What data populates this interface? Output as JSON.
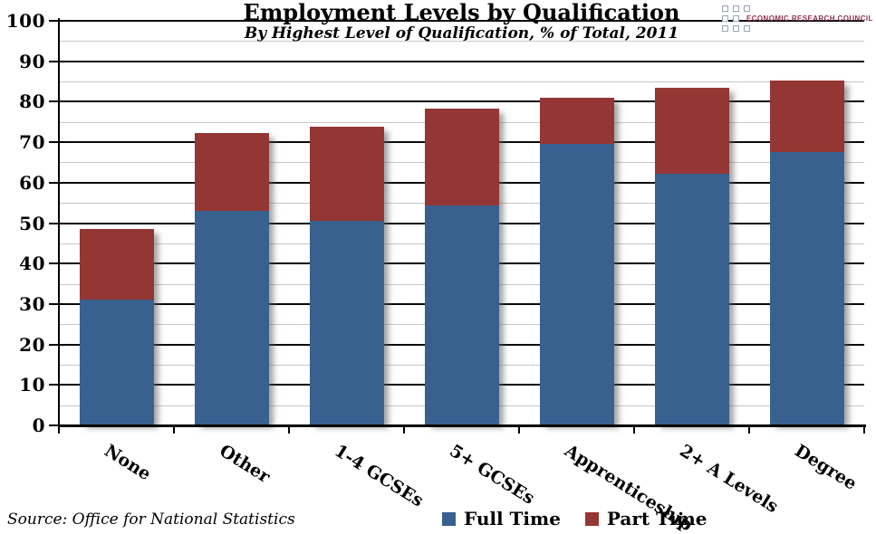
{
  "logo": {
    "text": "ECONOMIC RESEARCH COUNCIL",
    "text_color": "#8e3153",
    "square_border_color": "#9aa3b3"
  },
  "chart_data": {
    "type": "bar",
    "stacked": true,
    "title": "Employment Levels by Qualification",
    "subtitle": "By Highest Level of Qualification, % of Total, 2011",
    "source_note": "Source: Office for National Statistics",
    "categories": [
      "None",
      "Other",
      "1-4 GCSEs",
      "5+ GCSEs",
      "Apprenticeship",
      "2+ A Levels",
      "Degree"
    ],
    "series": [
      {
        "name": "Full Time",
        "color": "#38618F",
        "values": [
          31.0,
          53.0,
          50.5,
          54.3,
          69.5,
          62.2,
          67.6
        ]
      },
      {
        "name": "Part Time",
        "color": "#943634",
        "values": [
          17.5,
          19.3,
          23.3,
          24.1,
          11.4,
          21.3,
          17.7
        ]
      }
    ],
    "ylim": [
      0,
      100
    ],
    "y_major_step": 10,
    "y_minor_step": 5,
    "y_tick_labels": [
      "0",
      "10",
      "20",
      "30",
      "40",
      "50",
      "60",
      "70",
      "80",
      "90",
      "100"
    ],
    "grid": true,
    "legend_position": "bottom-center",
    "colors": {
      "major_grid": "#0a0a0a",
      "minor_grid": "#c7c7c7",
      "axis": "#000000"
    }
  }
}
